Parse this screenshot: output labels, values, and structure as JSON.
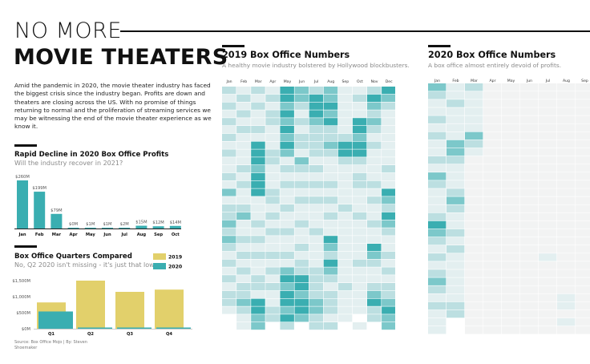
{
  "header": {
    "title_line1": "NO MORE",
    "title_line2": "MOVIE THEATERS",
    "intro": "Amid the pandemic in 2020, the movie theater industry has faced the biggest crisis since the industry began. Profits are down and theaters are closing across the US. With no promise of things returning to normal and the proliferation of streaming services we may be witnessing the end of the movie theater experience as we know it."
  },
  "decline_section": {
    "title": "Rapid Decline in 2020 Box Office Profits",
    "subtitle": "Will the industry recover in 2021?"
  },
  "quarters_section": {
    "title": "Box Office Quarters Compared",
    "subtitle": "No, Q2 2020 isn't missing - it's just that low."
  },
  "heatmap_2019": {
    "title": "2019 Box Office Numbers",
    "subtitle": "A healthy movie industry bolstered by Hollywood blockbusters."
  },
  "heatmap_2020": {
    "title": "2020 Box Office Numbers",
    "subtitle": "A box office almost entirely devoid of profits."
  },
  "source": "Source: Box Office Mojo | By: Steven Shoemaker",
  "colors": {
    "teal": "#3aaeb1",
    "gold": "#e2d06b",
    "empty": "#f2f3f3"
  },
  "chart_data": [
    {
      "type": "bar",
      "title": "Rapid Decline in 2020 Box Office Profits",
      "categories": [
        "Jan",
        "Feb",
        "Mar",
        "Apr",
        "May",
        "Jun",
        "Jul",
        "Aug",
        "Sep",
        "Oct"
      ],
      "values": [
        260,
        199,
        79,
        0,
        1,
        1,
        2,
        15,
        12,
        14
      ],
      "data_labels": [
        "$260M",
        "$199M",
        "$79M",
        "$0M",
        "$1M",
        "$1M",
        "$2M",
        "$15M",
        "$12M",
        "$14M"
      ],
      "unit": "$M"
    },
    {
      "type": "bar",
      "title": "Box Office Quarters Compared",
      "categories": [
        "Q1",
        "Q2",
        "Q3",
        "Q4"
      ],
      "series": [
        {
          "name": "2019",
          "values": [
            820,
            1500,
            1150,
            1220
          ]
        },
        {
          "name": "2020",
          "values": [
            538,
            3,
            29,
            28
          ]
        }
      ],
      "yticks": [
        "$0M",
        "$500M",
        "$1,000M",
        "$1,500M"
      ],
      "ylim": [
        0,
        1700
      ],
      "legend": "top-right"
    },
    {
      "type": "heatmap",
      "title": "2019 Box Office Numbers",
      "columns": [
        "Jan",
        "Feb",
        "Mar",
        "Apr",
        "May",
        "Jun",
        "Jul",
        "Aug",
        "Sep",
        "Oct",
        "Nov",
        "Dec"
      ],
      "rows": 31,
      "values": [
        [
          2,
          1,
          2,
          1,
          4,
          3,
          2,
          3,
          1,
          1,
          2,
          4
        ],
        [
          1,
          2,
          1,
          2,
          4,
          3,
          4,
          3,
          1,
          2,
          4,
          3
        ],
        [
          2,
          1,
          2,
          1,
          3,
          2,
          4,
          4,
          1,
          1,
          3,
          2
        ],
        [
          1,
          2,
          1,
          2,
          4,
          1,
          4,
          3,
          1,
          1,
          2,
          1
        ],
        [
          2,
          1,
          1,
          2,
          3,
          2,
          3,
          4,
          1,
          4,
          3,
          1
        ],
        [
          1,
          2,
          2,
          1,
          4,
          1,
          2,
          2,
          1,
          4,
          2,
          1
        ],
        [
          2,
          1,
          1,
          1,
          3,
          2,
          2,
          2,
          2,
          3,
          1,
          1
        ],
        [
          1,
          1,
          4,
          1,
          4,
          2,
          2,
          3,
          4,
          4,
          2,
          1
        ],
        [
          2,
          1,
          4,
          2,
          3,
          1,
          2,
          2,
          4,
          4,
          1,
          1
        ],
        [
          1,
          1,
          4,
          2,
          1,
          3,
          1,
          1,
          2,
          2,
          1,
          1
        ],
        [
          1,
          2,
          3,
          1,
          2,
          2,
          2,
          1,
          1,
          1,
          1,
          2
        ],
        [
          2,
          1,
          4,
          1,
          1,
          1,
          1,
          1,
          1,
          2,
          1,
          1
        ],
        [
          1,
          2,
          4,
          1,
          2,
          2,
          2,
          2,
          1,
          2,
          2,
          1
        ],
        [
          3,
          1,
          4,
          2,
          1,
          1,
          1,
          1,
          1,
          1,
          1,
          4
        ],
        [
          1,
          1,
          1,
          2,
          1,
          2,
          2,
          2,
          1,
          1,
          2,
          3
        ],
        [
          2,
          2,
          1,
          1,
          2,
          1,
          1,
          1,
          2,
          1,
          1,
          2
        ],
        [
          2,
          3,
          1,
          2,
          1,
          1,
          1,
          2,
          1,
          2,
          1,
          4
        ],
        [
          3,
          1,
          2,
          1,
          1,
          2,
          1,
          1,
          1,
          1,
          2,
          3
        ],
        [
          2,
          1,
          1,
          2,
          2,
          1,
          2,
          1,
          1,
          1,
          1,
          2
        ],
        [
          3,
          2,
          2,
          1,
          1,
          1,
          1,
          4,
          1,
          1,
          1,
          1
        ],
        [
          2,
          1,
          1,
          1,
          1,
          2,
          1,
          3,
          1,
          1,
          4,
          1
        ],
        [
          1,
          2,
          2,
          2,
          2,
          1,
          1,
          2,
          1,
          1,
          3,
          2
        ],
        [
          2,
          1,
          1,
          1,
          1,
          2,
          1,
          4,
          1,
          2,
          2,
          1
        ],
        [
          1,
          2,
          1,
          2,
          3,
          2,
          2,
          3,
          1,
          1,
          1,
          2
        ],
        [
          2,
          1,
          2,
          1,
          4,
          4,
          2,
          2,
          1,
          1,
          1,
          1
        ],
        [
          1,
          2,
          2,
          2,
          3,
          4,
          2,
          1,
          2,
          1,
          2,
          2
        ],
        [
          2,
          2,
          1,
          1,
          4,
          3,
          2,
          2,
          1,
          1,
          3,
          2
        ],
        [
          2,
          3,
          4,
          1,
          4,
          4,
          3,
          2,
          1,
          1,
          4,
          3
        ],
        [
          1,
          2,
          4,
          2,
          3,
          4,
          3,
          2,
          1,
          1,
          2,
          4
        ],
        [
          0,
          1,
          3,
          2,
          4,
          3,
          2,
          1,
          1,
          0,
          2,
          3
        ],
        [
          0,
          1,
          3,
          0,
          2,
          0,
          2,
          2,
          0,
          1,
          0,
          3
        ]
      ]
    },
    {
      "type": "heatmap",
      "title": "2020 Box Office Numbers",
      "columns": [
        "Jan",
        "Feb",
        "Mar",
        "Apr",
        "May",
        "Jun",
        "Jul",
        "Aug",
        "Sep"
      ],
      "rows": 31,
      "values": [
        [
          3,
          1,
          2,
          0,
          0,
          0,
          0,
          0,
          0
        ],
        [
          2,
          1,
          1,
          0,
          0,
          0,
          0,
          0,
          0
        ],
        [
          1,
          2,
          1,
          0,
          0,
          0,
          0,
          0,
          0
        ],
        [
          1,
          1,
          1,
          0,
          0,
          0,
          0,
          0,
          0
        ],
        [
          2,
          1,
          1,
          0,
          0,
          0,
          0,
          0,
          0
        ],
        [
          1,
          1,
          1,
          0,
          0,
          0,
          0,
          0,
          0
        ],
        [
          2,
          1,
          3,
          0,
          0,
          0,
          0,
          0,
          0
        ],
        [
          1,
          3,
          2,
          0,
          0,
          0,
          0,
          0,
          0
        ],
        [
          1,
          3,
          1,
          0,
          0,
          0,
          0,
          0,
          0
        ],
        [
          2,
          2,
          0,
          0,
          0,
          0,
          0,
          0,
          0
        ],
        [
          1,
          1,
          0,
          0,
          0,
          0,
          0,
          0,
          0
        ],
        [
          3,
          1,
          0,
          0,
          0,
          0,
          0,
          0,
          0
        ],
        [
          2,
          1,
          0,
          0,
          0,
          0,
          0,
          0,
          0
        ],
        [
          1,
          2,
          0,
          0,
          0,
          0,
          0,
          0,
          0
        ],
        [
          1,
          3,
          0,
          0,
          0,
          0,
          0,
          0,
          0
        ],
        [
          1,
          2,
          0,
          0,
          0,
          0,
          0,
          0,
          0
        ],
        [
          2,
          1,
          0,
          0,
          0,
          0,
          0,
          0,
          0
        ],
        [
          4,
          1,
          0,
          0,
          0,
          0,
          0,
          0,
          0
        ],
        [
          3,
          2,
          0,
          0,
          0,
          0,
          0,
          0,
          0
        ],
        [
          2,
          1,
          0,
          0,
          0,
          0,
          0,
          0,
          0
        ],
        [
          1,
          2,
          0,
          0,
          0,
          0,
          0,
          0,
          0
        ],
        [
          2,
          1,
          0,
          0,
          0,
          0,
          1,
          0,
          0
        ],
        [
          1,
          1,
          0,
          0,
          0,
          0,
          0,
          0,
          0
        ],
        [
          2,
          1,
          0,
          0,
          0,
          0,
          0,
          0,
          0
        ],
        [
          3,
          1,
          0,
          0,
          0,
          0,
          0,
          0,
          0
        ],
        [
          2,
          1,
          0,
          0,
          0,
          0,
          0,
          0,
          0
        ],
        [
          1,
          1,
          0,
          0,
          0,
          0,
          0,
          1,
          0
        ],
        [
          2,
          2,
          0,
          0,
          0,
          0,
          0,
          1,
          0
        ],
        [
          1,
          2,
          0,
          0,
          0,
          0,
          0,
          0,
          0
        ],
        [
          1,
          0,
          0,
          0,
          0,
          0,
          0,
          1,
          0
        ],
        [
          1,
          0,
          0,
          0,
          0,
          0,
          0,
          0,
          0
        ]
      ]
    }
  ]
}
